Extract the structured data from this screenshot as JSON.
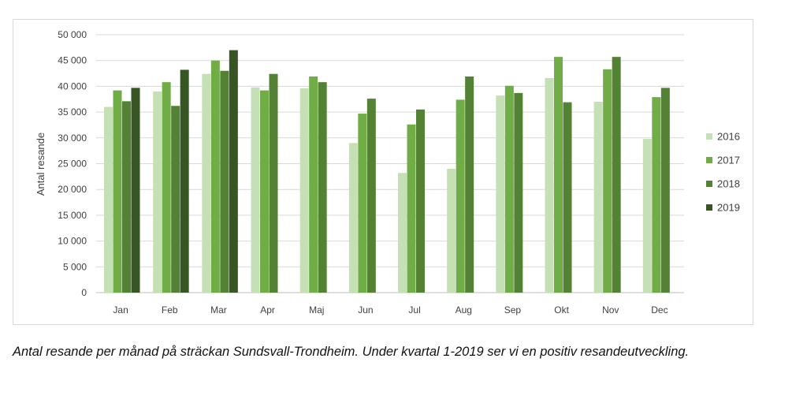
{
  "chart_data": {
    "type": "bar",
    "ylabel": "Antal resande",
    "ylim": [
      0,
      50000
    ],
    "yticks": [
      0,
      5000,
      10000,
      15000,
      20000,
      25000,
      30000,
      35000,
      40000,
      45000,
      50000
    ],
    "ytick_labels": [
      "0",
      "5 000",
      "10 000",
      "15 000",
      "20 000",
      "25 000",
      "30 000",
      "35 000",
      "40 000",
      "45 000",
      "50 000"
    ],
    "grid": true,
    "legend_position": "right",
    "categories": [
      "Jan",
      "Feb",
      "Mar",
      "Apr",
      "Maj",
      "Jun",
      "Jul",
      "Aug",
      "Sep",
      "Okt",
      "Nov",
      "Dec"
    ],
    "series": [
      {
        "name": "2016",
        "color": "#c5e0b4",
        "values": [
          36000,
          39000,
          42400,
          39800,
          39600,
          29000,
          23200,
          24000,
          38200,
          41600,
          37000,
          29800
        ]
      },
      {
        "name": "2017",
        "color": "#70ad47",
        "values": [
          39200,
          40800,
          45000,
          39200,
          41900,
          34700,
          32600,
          37400,
          40100,
          45700,
          43300,
          37900
        ]
      },
      {
        "name": "2018",
        "color": "#548235",
        "values": [
          37100,
          36200,
          43000,
          42400,
          40800,
          37600,
          35500,
          41900,
          38700,
          36900,
          45700,
          39700
        ]
      },
      {
        "name": "2019",
        "color": "#375623",
        "values": [
          39700,
          43200,
          47000,
          null,
          null,
          null,
          null,
          null,
          null,
          null,
          null,
          null
        ]
      }
    ]
  },
  "caption": "Antal resande per månad på sträckan Sundsvall-Trondheim. Under kvartal 1-2019 ser vi en positiv resandeutveckling."
}
